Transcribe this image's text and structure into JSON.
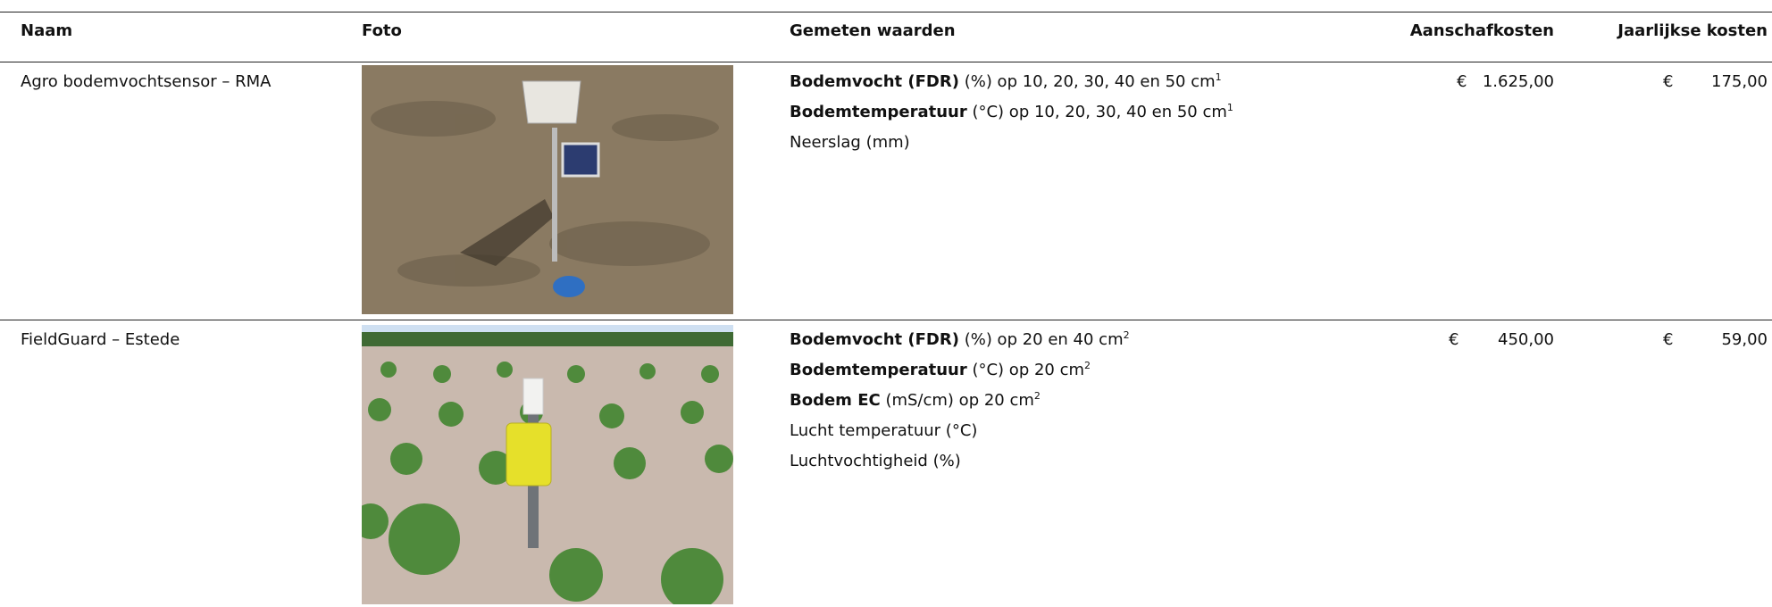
{
  "table": {
    "header": [
      "Naam",
      "Foto",
      "Gemeten waarden",
      "Aanschafkosten",
      "Jaarlijkse kosten"
    ],
    "rows": [
      {
        "name": "Agro bodemvochtsensor – RMA",
        "measurements": [
          {
            "bold": "Bodemvocht (FDR)",
            "text": "(%) op 10, 20, 30, 40 en 50 cm",
            "sup": "1"
          },
          {
            "bold": "Bodemtemperatuur",
            "text": "(°C) op 10, 20, 30, 40 en 50 cm",
            "sup": "1"
          },
          {
            "text": "Neerslag (mm)"
          }
        ],
        "purchase": {
          "currency": "€",
          "amount": "1.625,00"
        },
        "annual": {
          "currency": "€",
          "amount": "175,00"
        }
      },
      {
        "name": "FieldGuard – Estede",
        "measurements": [
          {
            "bold": "Bodemvocht (FDR)",
            "text": "(%) op 20 en 40 cm",
            "sup": "2"
          },
          {
            "bold": "Bodemtemperatuur",
            "text": "(°C) op 20 cm",
            "sup": "2"
          },
          {
            "bold": "Bodem EC",
            "text": "(mS/cm) op 20 cm",
            "sup": "2"
          },
          {
            "text": "Lucht temperatuur (°C)"
          },
          {
            "text": "Luchtvochtigheid (%)"
          }
        ],
        "purchase": {
          "currency": "€",
          "amount": "450,00"
        },
        "annual": {
          "currency": "€",
          "amount": "59,00"
        }
      }
    ]
  }
}
